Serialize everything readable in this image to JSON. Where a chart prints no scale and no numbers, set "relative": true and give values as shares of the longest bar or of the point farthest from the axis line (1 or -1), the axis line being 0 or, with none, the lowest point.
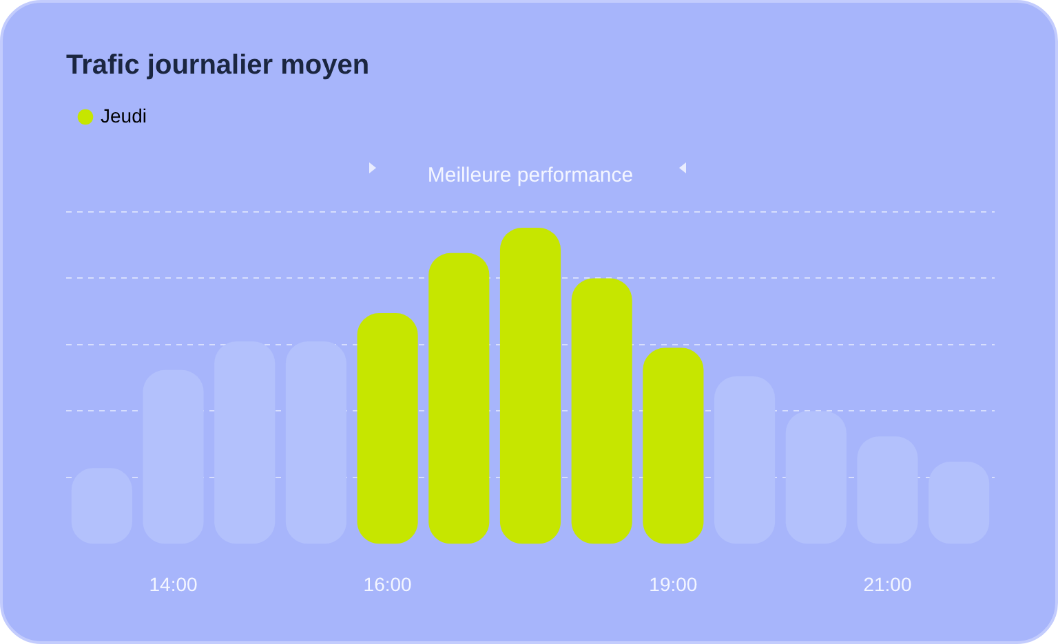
{
  "chart_data": {
    "type": "bar",
    "title": "Trafic journalier moyen",
    "categories": [
      null,
      "14:00",
      null,
      null,
      "16:00",
      null,
      null,
      null,
      "19:00",
      null,
      null,
      "21:00",
      null
    ],
    "series": [
      {
        "name": "Jeudi",
        "color": "#c6e600",
        "colors": [
          "#b3c1fc",
          "#b3c1fc",
          "#b3c1fc",
          "#b3c1fc",
          "#c6e600",
          "#c6e600",
          "#c6e600",
          "#c6e600",
          "#c6e600",
          "#b3c1fc",
          "#b3c1fc",
          "#b3c1fc",
          "#b3c1fc"
        ],
        "values": [
          0.24,
          0.55,
          0.64,
          0.64,
          0.73,
          0.92,
          1,
          0.84,
          0.62,
          0.53,
          0.42,
          0.34,
          0.26
        ]
      }
    ],
    "relative": true,
    "grid": "y",
    "legend": "top left",
    "annotations": [
      "Meilleure performance"
    ]
  }
}
